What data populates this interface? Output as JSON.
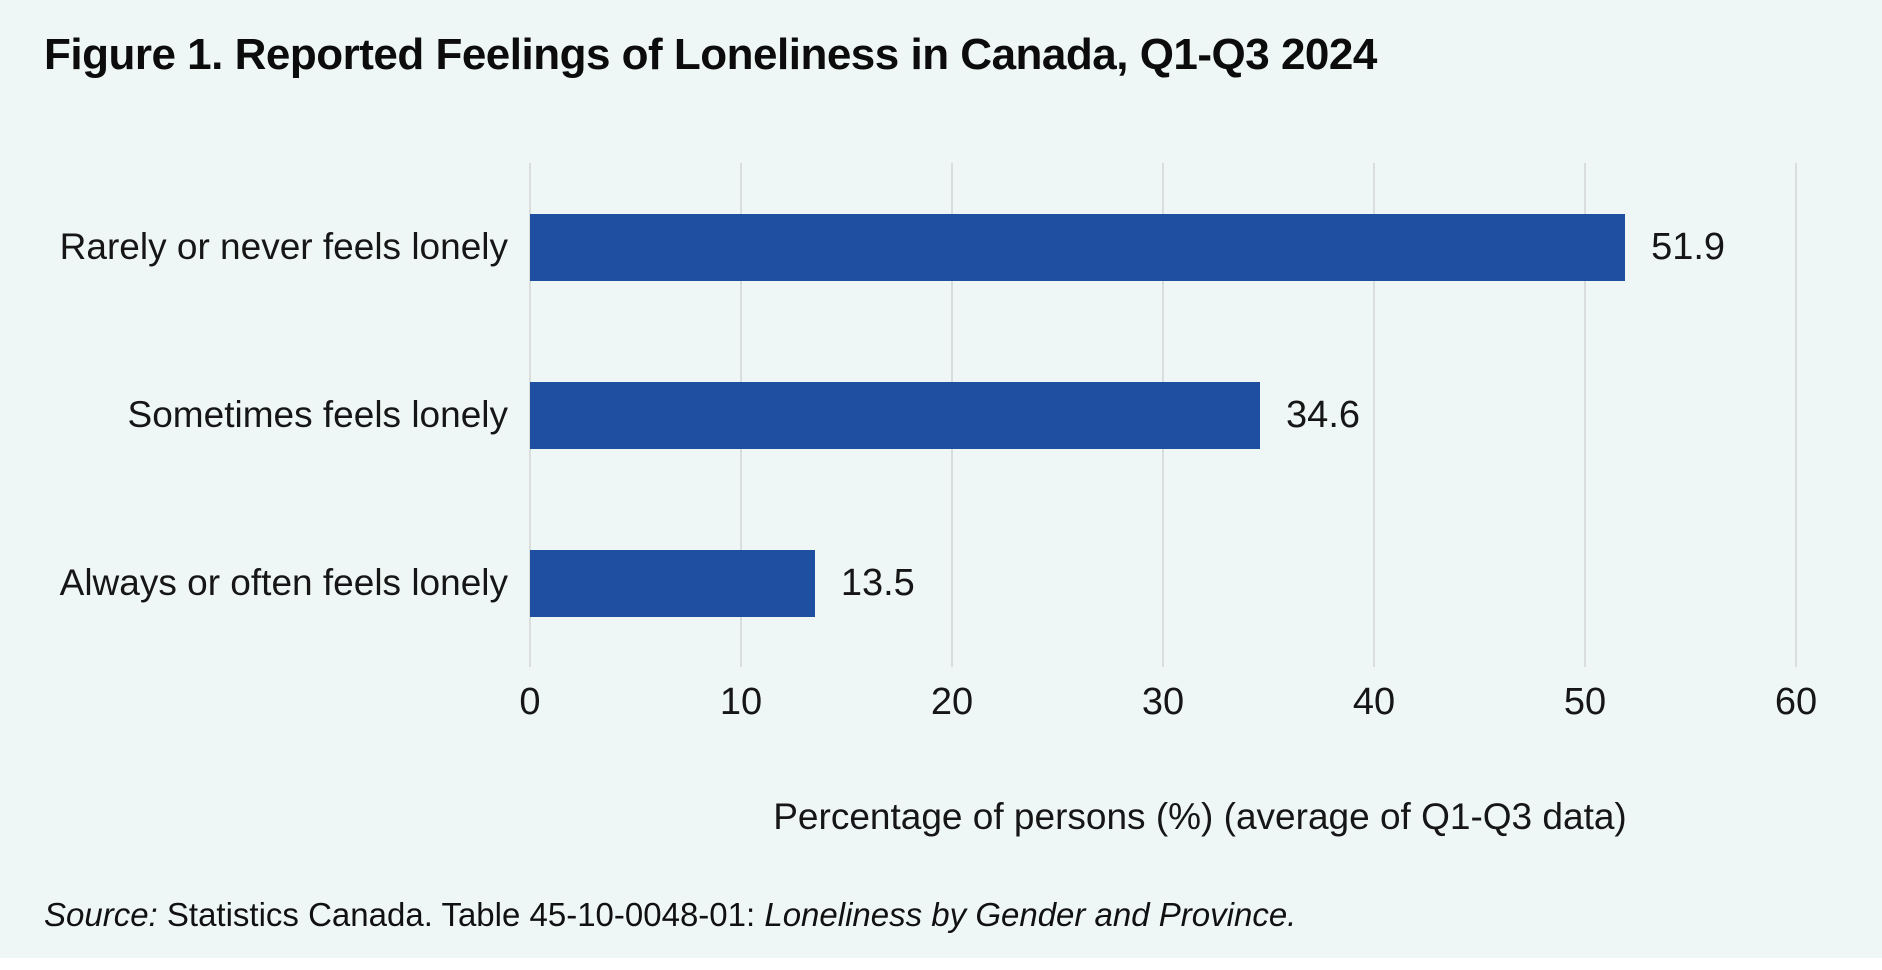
{
  "title": "Figure 1. Reported Feelings of Loneliness in Canada, Q1-Q3 2024",
  "chart_data": {
    "type": "bar",
    "orientation": "horizontal",
    "title": "Figure 1. Reported Feelings of Loneliness in Canada, Q1-Q3 2024",
    "categories": [
      "Rarely or never feels lonely",
      "Sometimes feels lonely",
      "Always or often feels lonely"
    ],
    "values": [
      51.9,
      34.6,
      13.5
    ],
    "value_labels": [
      "51.9",
      "34.6",
      "13.5"
    ],
    "xlabel": "Percentage of persons (%) (average of Q1-Q3 data)",
    "xlim": [
      0,
      60
    ],
    "xticks": [
      0,
      10,
      20,
      30,
      40,
      50,
      60
    ],
    "grid": "vertical-only",
    "legend": "none",
    "bar_color": "#1e4fa1"
  },
  "source": {
    "segments": [
      {
        "text": "Source:",
        "italic": true
      },
      {
        "text": " Statistics Canada. Table 45-10-0048-01: ",
        "italic": false
      },
      {
        "text": "Loneliness by Gender and Province.",
        "italic": true
      }
    ]
  },
  "colors": {
    "background": "#eef7f5",
    "bar": "#1e4fa1",
    "gridline": "#d9dedc",
    "text": "#161616",
    "bottom_strip": "#ffffff"
  }
}
